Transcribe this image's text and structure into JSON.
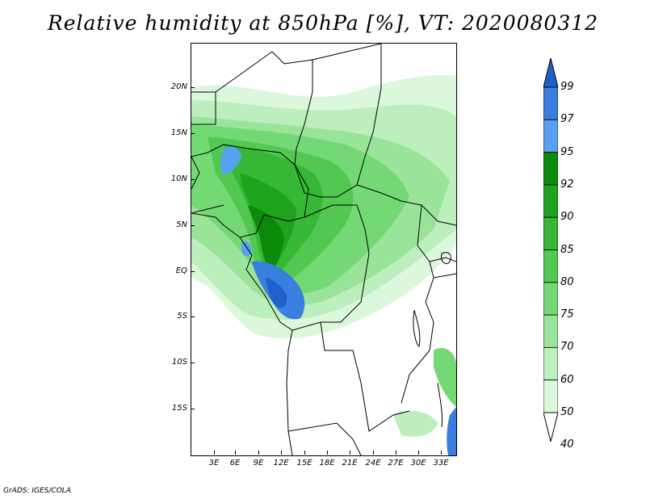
{
  "title": "Relative humidity at 850hPa [%], VT: 2020080312",
  "footer": "GrADS: IGES/COLA",
  "map": {
    "lat_labels": [
      "20N",
      "15N",
      "10N",
      "5N",
      "EQ",
      "5S",
      "10S",
      "15S"
    ],
    "lon_labels": [
      "3E",
      "6E",
      "9E",
      "12E",
      "15E",
      "18E",
      "21E",
      "24E",
      "27E",
      "30E",
      "33E"
    ],
    "region": "Central Africa",
    "variable": "Relative humidity at 850hPa",
    "unit": "%"
  },
  "colorbar": {
    "levels": [
      "99",
      "97",
      "95",
      "92",
      "90",
      "85",
      "80",
      "75",
      "70",
      "60",
      "50",
      "40"
    ],
    "colors": [
      "#2060c8",
      "#3a7fe0",
      "#5aa0f0",
      "#0c8a0c",
      "#1ea31e",
      "#36b836",
      "#52c852",
      "#74d874",
      "#9ae49a",
      "#bdeebd",
      "#dcf8dc",
      "#f2fff2"
    ]
  }
}
